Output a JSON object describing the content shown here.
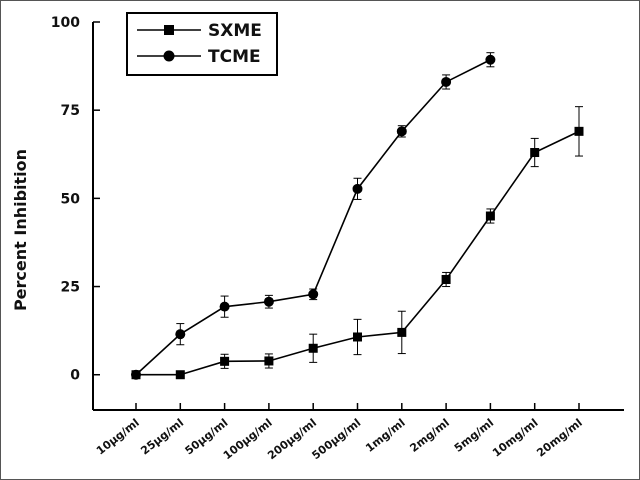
{
  "chart_data": {
    "type": "line",
    "title": "",
    "xlabel": "",
    "ylabel": "Percent Inhibition",
    "categories": [
      "10μg/ml",
      "25μg/ml",
      "50μg/ml",
      "100μg/ml",
      "200μg/ml",
      "500μg/ml",
      "1mg/ml",
      "2mg/ml",
      "5mg/ml",
      "10mg/ml",
      "20mg/ml"
    ],
    "ylim": [
      -10,
      100
    ],
    "yticks": [
      "0",
      "25",
      "50",
      "75",
      "100"
    ],
    "legend_position": "top-left",
    "grid": false,
    "series": [
      {
        "name": "SXME",
        "marker": "square",
        "color": "#000000",
        "values": [
          0,
          0,
          3.8,
          3.9,
          7.5,
          10.7,
          12,
          27,
          45,
          63,
          69
        ],
        "errors": [
          0,
          0,
          2,
          2,
          4,
          5,
          6,
          2,
          2,
          4,
          7
        ]
      },
      {
        "name": "TCME",
        "marker": "circle",
        "color": "#000000",
        "values": [
          0,
          11.5,
          19.3,
          20.7,
          22.8,
          52.7,
          69,
          83,
          89.3,
          null,
          null
        ],
        "errors": [
          0,
          3,
          3,
          1.8,
          1.5,
          3,
          1.6,
          2,
          2,
          null,
          null
        ]
      }
    ]
  }
}
